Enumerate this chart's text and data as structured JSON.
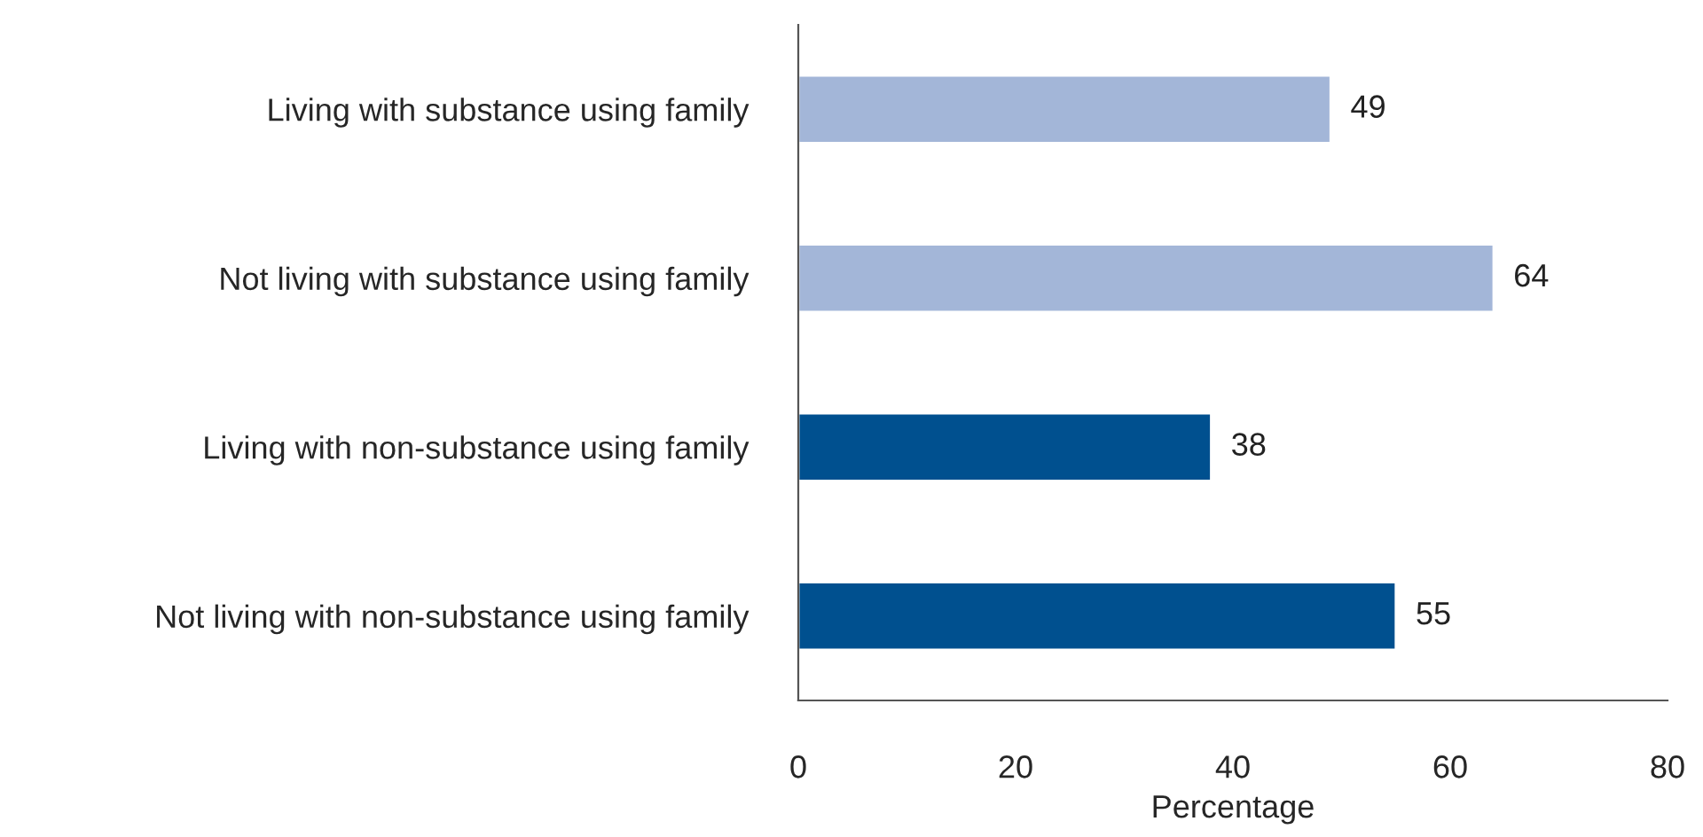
{
  "chart_data": {
    "type": "bar",
    "orientation": "horizontal",
    "xlabel": "Percentage",
    "categories": [
      "Living with substance using family",
      "Not living with substance using family",
      "Living with non-substance using family",
      "Not living with non-substance using family"
    ],
    "values": [
      49,
      64,
      38,
      55
    ],
    "colors": [
      "#a3b6d8",
      "#a3b6d8",
      "#00508f",
      "#00508f"
    ],
    "xlim": [
      0,
      80
    ],
    "xticks": [
      0,
      20,
      40,
      60,
      80
    ],
    "data_labels": true,
    "grid": false,
    "legend": false
  }
}
